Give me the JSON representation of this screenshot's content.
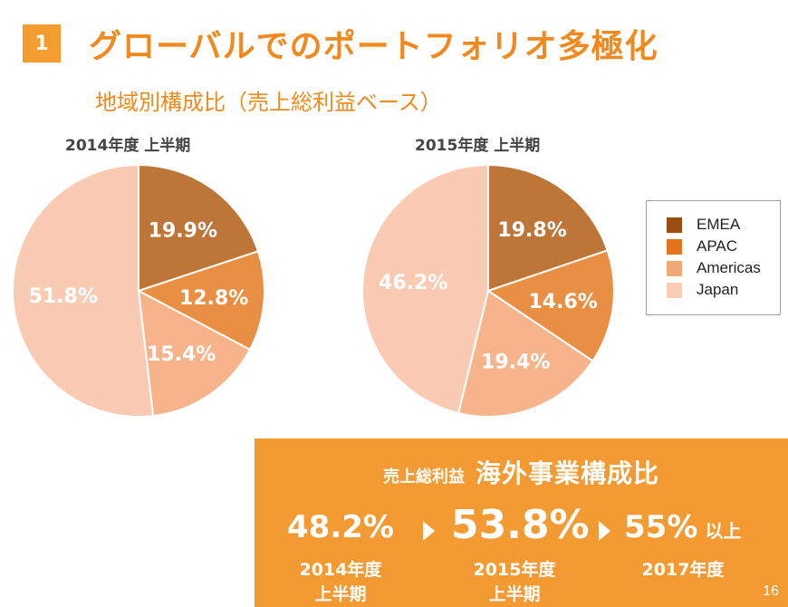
{
  "slide": {
    "section_number": "1",
    "title": "グローバルでのポートフォリオ多極化",
    "subtitle": "地域別構成比（売上総利益ベース）",
    "page_number": "16"
  },
  "charts_text": {
    "left_title": "2014年度 上半期",
    "right_title": "2015年度 上半期"
  },
  "legend": [
    {
      "label": "EMEA",
      "color": "#9c4c11"
    },
    {
      "label": "APAC",
      "color": "#e5731b"
    },
    {
      "label": "Americas",
      "color": "#f2a777"
    },
    {
      "label": "Japan",
      "color": "#f8cdb3"
    }
  ],
  "chart_data": [
    {
      "type": "pie",
      "title": "2014年度 上半期",
      "categories": [
        "EMEA",
        "APAC",
        "Americas",
        "Japan"
      ],
      "values": [
        19.9,
        12.8,
        15.4,
        51.8
      ],
      "data_labels": [
        "19.9%",
        "12.8%",
        "15.4%",
        "51.8%"
      ],
      "colors": [
        "#bd7638",
        "#e98f44",
        "#f7b48b",
        "#f9cbb3"
      ],
      "label_colors": [
        "#ffffff",
        "#ffffff",
        "#ffffff",
        "#ffffff"
      ]
    },
    {
      "type": "pie",
      "title": "2015年度 上半期",
      "categories": [
        "EMEA",
        "APAC",
        "Americas",
        "Japan"
      ],
      "values": [
        19.8,
        14.6,
        19.4,
        46.2
      ],
      "data_labels": [
        "19.8%",
        "14.6%",
        "19.4%",
        "46.2%"
      ],
      "colors": [
        "#bd7638",
        "#e98f44",
        "#f7b48b",
        "#f9cbb3"
      ],
      "label_colors": [
        "#ffffff",
        "#ffffff",
        "#ffffff",
        "#ffffff"
      ]
    }
  ],
  "overseas_ratio": {
    "title_small": "売上総利益",
    "title_big": "海外事業構成比",
    "items": [
      {
        "value": "48.2%",
        "year": "2014年度",
        "half": "上半期"
      },
      {
        "value": "53.8%",
        "year": "2015年度",
        "half": "上半期"
      },
      {
        "value": "55%",
        "suffix": "以上",
        "year": "2017年度"
      }
    ]
  }
}
